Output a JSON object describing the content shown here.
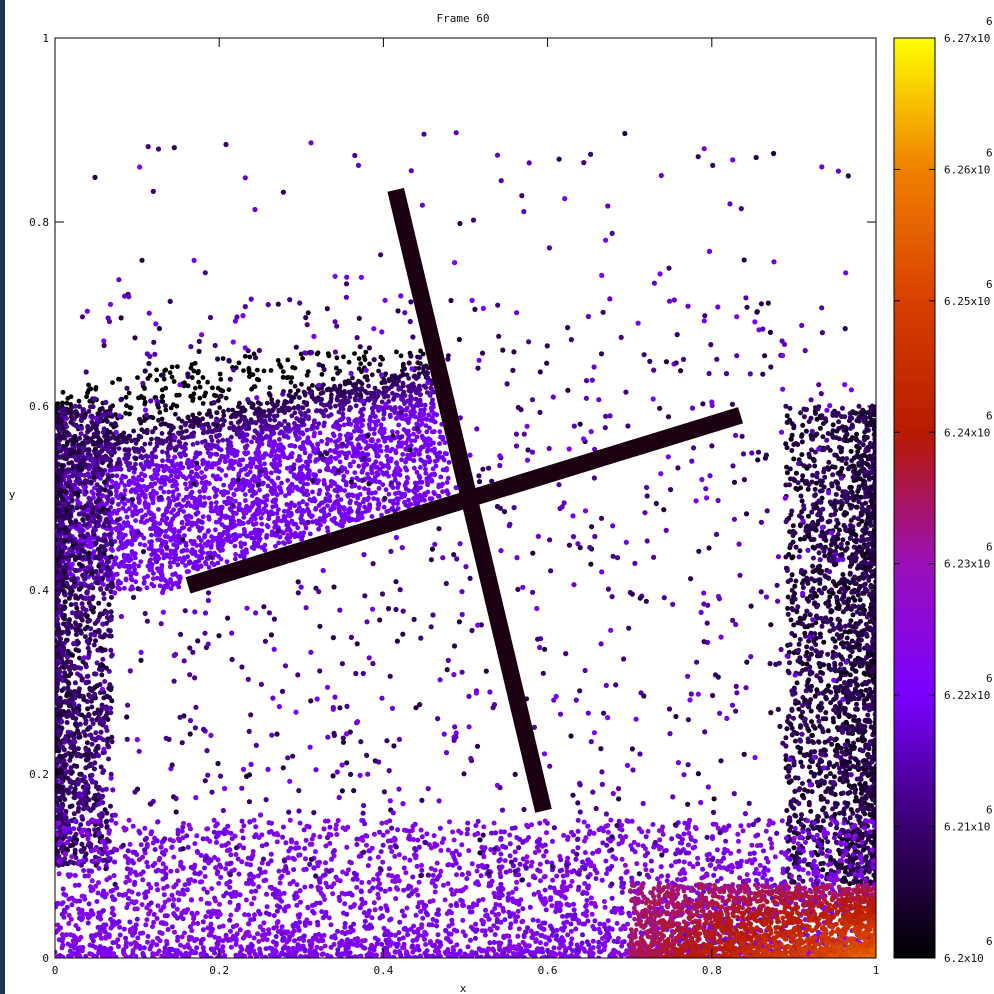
{
  "chart_data": {
    "type": "scatter",
    "title": "Frame 60",
    "xlabel": "x",
    "ylabel": "y",
    "xlim": [
      0,
      1
    ],
    "ylim": [
      0,
      1
    ],
    "grid": false,
    "legend": "none",
    "x_ticks": [
      "0",
      "0.2",
      "0.4",
      "0.6",
      "0.8",
      "1"
    ],
    "y_ticks": [
      "0",
      "0.2",
      "0.4",
      "0.6",
      "0.8",
      "1"
    ],
    "colorbar": {
      "range": [
        6200000,
        6270000
      ],
      "ticks": [
        {
          "value": 6200000,
          "mantissa": "6.2x10",
          "exponent": "6"
        },
        {
          "value": 6210000,
          "mantissa": "6.21x10",
          "exponent": "6"
        },
        {
          "value": 6220000,
          "mantissa": "6.22x10",
          "exponent": "6"
        },
        {
          "value": 6230000,
          "mantissa": "6.23x10",
          "exponent": "6"
        },
        {
          "value": 6240000,
          "mantissa": "6.24x10",
          "exponent": "6"
        },
        {
          "value": 6250000,
          "mantissa": "6.25x10",
          "exponent": "6"
        },
        {
          "value": 6260000,
          "mantissa": "6.26x10",
          "exponent": "6"
        },
        {
          "value": 6270000,
          "mantissa": "6.27x10",
          "exponent": "6"
        }
      ],
      "palette": [
        "#000000",
        "#3a0070",
        "#7a00ff",
        "#9a10b8",
        "#b81a00",
        "#d84000",
        "#f08000",
        "#ffff00"
      ]
    },
    "cross": {
      "color": "#1a0010",
      "arm1": {
        "x": [
          0.415,
          0.595
        ],
        "y": [
          0.835,
          0.16
        ]
      },
      "arm2": {
        "x": [
          0.162,
          0.835
        ],
        "y": [
          0.405,
          0.59
        ]
      }
    },
    "regions": [
      {
        "name": "left-wedge",
        "x": [
          0.0,
          0.48
        ],
        "y": [
          0.4,
          0.66
        ],
        "density": "high",
        "value": 6218000
      },
      {
        "name": "left-edge",
        "x": [
          0.0,
          0.06
        ],
        "y": [
          0.1,
          0.6
        ],
        "density": "high",
        "value": 6210000
      },
      {
        "name": "right-edge",
        "x": [
          0.9,
          1.0
        ],
        "y": [
          0.08,
          0.6
        ],
        "density": "high",
        "value": 6207000
      },
      {
        "name": "bottom-band",
        "x": [
          0.0,
          1.0
        ],
        "y": [
          0.0,
          0.15
        ],
        "density": "high",
        "value": 6225000
      },
      {
        "name": "bottom-right-hot",
        "x": [
          0.7,
          1.0
        ],
        "y": [
          0.0,
          0.08
        ],
        "density": "high",
        "value": 6245000
      },
      {
        "name": "sparse-interior",
        "x": [
          0.05,
          0.95
        ],
        "y": [
          0.1,
          0.9
        ],
        "density": "low",
        "value": 6218000
      }
    ]
  }
}
